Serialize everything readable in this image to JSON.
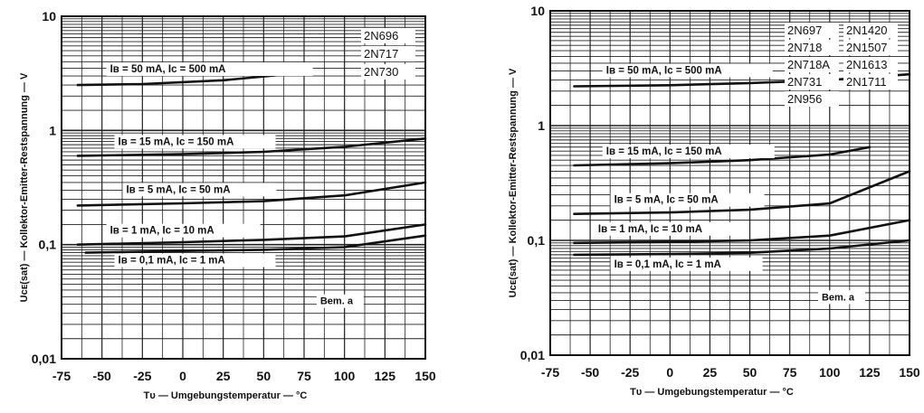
{
  "chart_data": [
    {
      "type": "line",
      "devices": [
        "2N696",
        "2N717",
        "2N730"
      ],
      "xlabel": "Tᴜ — Umgebungstemperatur — °C",
      "ylabel": "Uᴄᴇ(sat) — Kollektor-Emitter-Restspannung — V",
      "xlim": [
        -75,
        150
      ],
      "ylim": [
        0.01,
        10
      ],
      "yscale": "log",
      "x_ticks": [
        "-75",
        "-50",
        "-25",
        "0",
        "25",
        "50",
        "75",
        "100",
        "125",
        "150"
      ],
      "y_ticks": [
        "0,01",
        "0,1",
        "1",
        "10"
      ],
      "grid": true,
      "note": "Bem. a",
      "series": [
        {
          "name": "Iʙ = 50 mA, Iᴄ = 500 mA",
          "x": [
            -65,
            -25,
            25,
            75
          ],
          "values": [
            2.5,
            2.55,
            2.75,
            3.2
          ]
        },
        {
          "name": "Iʙ = 15 mA, Iᴄ = 150 mA",
          "x": [
            -65,
            0,
            50,
            100,
            150
          ],
          "values": [
            0.6,
            0.62,
            0.65,
            0.72,
            0.85
          ]
        },
        {
          "name": "Iʙ = 5 mA, Iᴄ = 50 mA",
          "x": [
            -65,
            0,
            50,
            100,
            150
          ],
          "values": [
            0.22,
            0.23,
            0.24,
            0.27,
            0.35
          ]
        },
        {
          "name": "Iʙ = 1 mA, Iᴄ = 10 mA",
          "x": [
            -65,
            0,
            50,
            100,
            150
          ],
          "values": [
            0.1,
            0.105,
            0.11,
            0.118,
            0.15
          ]
        },
        {
          "name": "Iʙ = 0,1 mA, Iᴄ = 1 mA",
          "x": [
            -60,
            0,
            50,
            100,
            150
          ],
          "values": [
            0.085,
            0.088,
            0.09,
            0.095,
            0.12
          ]
        }
      ]
    },
    {
      "type": "line",
      "devices": [
        "2N697",
        "2N1420",
        "2N718",
        "2N1507",
        "2N718A",
        "2N1613",
        "2N731",
        "2N1711",
        "2N956"
      ],
      "xlabel": "Tᴜ — Umgebungstemperatur — °C",
      "ylabel": "Uᴄᴇ(sat) — Kollektor-Emitter-Restspannung — V",
      "xlim": [
        -75,
        150
      ],
      "ylim": [
        0.01,
        10
      ],
      "yscale": "log",
      "x_ticks": [
        "-75",
        "-50",
        "-25",
        "0",
        "25",
        "50",
        "75",
        "100",
        "125",
        "150"
      ],
      "y_ticks": [
        "0,01",
        "0,1",
        "1",
        "10"
      ],
      "grid": true,
      "note": "Bem. a",
      "series": [
        {
          "name": "Iʙ = 50 mA, Iᴄ = 500 mA",
          "x": [
            -60,
            0,
            50,
            100,
            150
          ],
          "values": [
            2.2,
            2.25,
            2.35,
            2.5,
            2.8
          ]
        },
        {
          "name": "Iʙ = 15 mA, Iᴄ = 150 mA",
          "x": [
            -60,
            0,
            50,
            100,
            125
          ],
          "values": [
            0.45,
            0.47,
            0.5,
            0.56,
            0.65
          ]
        },
        {
          "name": "Iʙ = 5 mA, Iᴄ = 50 mA",
          "x": [
            -60,
            0,
            50,
            100,
            150
          ],
          "values": [
            0.17,
            0.175,
            0.185,
            0.21,
            0.4
          ]
        },
        {
          "name": "Iʙ = 1 mA, Iᴄ = 10 mA",
          "x": [
            -60,
            0,
            50,
            100,
            150
          ],
          "values": [
            0.095,
            0.097,
            0.1,
            0.11,
            0.15
          ]
        },
        {
          "name": "Iʙ = 0,1 mA, Iᴄ = 1 mA",
          "x": [
            -60,
            0,
            50,
            100,
            150
          ],
          "values": [
            0.075,
            0.076,
            0.078,
            0.085,
            0.1
          ]
        }
      ]
    }
  ]
}
